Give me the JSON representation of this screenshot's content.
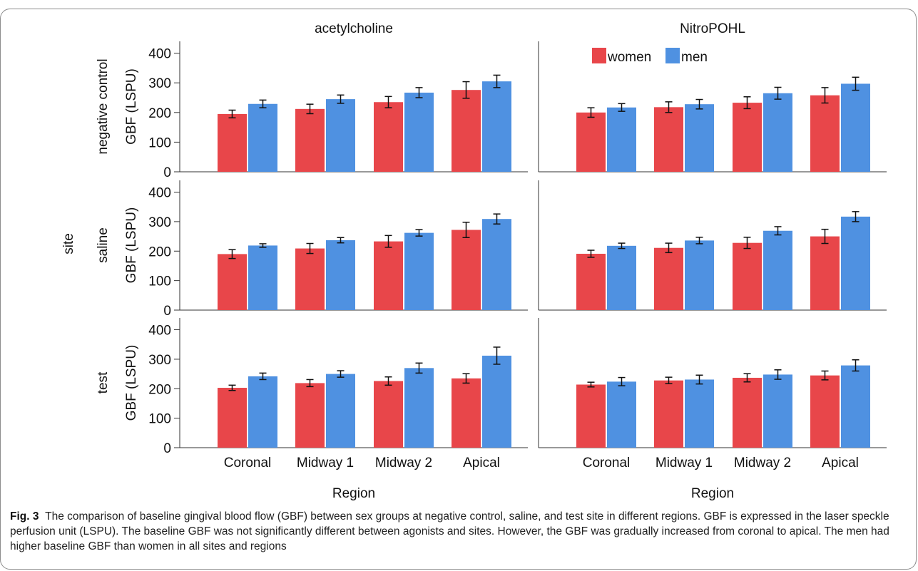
{
  "figure": {
    "caption_label": "Fig. 3",
    "caption_text": "The comparison of baseline gingival blood flow (GBF) between sex groups at negative control, saline, and test site in different regions. GBF is expressed in the laser speckle perfusion unit (LSPU). The baseline GBF was not significantly different between agonists and sites. However, the GBF was gradually increased from coronal to apical. The men had higher baseline GBF than women in all sites and regions"
  },
  "chart_data": {
    "type": "bar",
    "facet_row_title": "site",
    "xlabel": "Region",
    "ylabel": "GBF (LSPU)",
    "ylim": [
      0,
      440
    ],
    "yticks": [
      0,
      100,
      200,
      300,
      400
    ],
    "categories": [
      "Coronal",
      "Midway 1",
      "Midway 2",
      "Apical"
    ],
    "columns": [
      "acetylcholine",
      "NitroPOHL"
    ],
    "rows": [
      "negative control",
      "saline",
      "test"
    ],
    "legend": {
      "position": "top-right",
      "entries": [
        {
          "name": "women",
          "color": "#e8464a"
        },
        {
          "name": "men",
          "color": "#4f91e1"
        }
      ]
    },
    "error_bars": "shown",
    "grid": false,
    "panels": [
      {
        "row": "negative control",
        "column": "acetylcholine",
        "series": [
          {
            "name": "women",
            "values": [
              195,
              212,
              235,
              276
            ],
            "errors": [
              13,
              16,
              19,
              28
            ]
          },
          {
            "name": "men",
            "values": [
              229,
              245,
              267,
              305
            ],
            "errors": [
              13,
              14,
              17,
              21
            ]
          }
        ]
      },
      {
        "row": "negative control",
        "column": "NitroPOHL",
        "series": [
          {
            "name": "women",
            "values": [
              200,
              218,
              233,
              258
            ],
            "errors": [
              16,
              18,
              20,
              26
            ]
          },
          {
            "name": "men",
            "values": [
              217,
              228,
              265,
              297
            ],
            "errors": [
              13,
              16,
              20,
              22
            ]
          }
        ]
      },
      {
        "row": "saline",
        "column": "acetylcholine",
        "series": [
          {
            "name": "women",
            "values": [
              190,
              209,
              233,
              272
            ],
            "errors": [
              15,
              17,
              20,
              26
            ]
          },
          {
            "name": "men",
            "values": [
              219,
              237,
              262,
              309
            ],
            "errors": [
              6,
              9,
              11,
              17
            ]
          }
        ]
      },
      {
        "row": "saline",
        "column": "NitroPOHL",
        "series": [
          {
            "name": "women",
            "values": [
              191,
              211,
              228,
              250
            ],
            "errors": [
              12,
              16,
              19,
              24
            ]
          },
          {
            "name": "men",
            "values": [
              218,
              236,
              269,
              317
            ],
            "errors": [
              9,
              11,
              14,
              17
            ]
          }
        ]
      },
      {
        "row": "test",
        "column": "acetylcholine",
        "series": [
          {
            "name": "women",
            "values": [
              203,
              219,
              226,
              235
            ],
            "errors": [
              9,
              12,
              14,
              16
            ]
          },
          {
            "name": "men",
            "values": [
              242,
              250,
              270,
              312
            ],
            "errors": [
              11,
              11,
              17,
              29
            ]
          }
        ]
      },
      {
        "row": "test",
        "column": "NitroPOHL",
        "series": [
          {
            "name": "women",
            "values": [
              214,
              228,
              237,
              245
            ],
            "errors": [
              8,
              11,
              14,
              15
            ]
          },
          {
            "name": "men",
            "values": [
              224,
              231,
              248,
              279
            ],
            "errors": [
              14,
              15,
              16,
              19
            ]
          }
        ]
      }
    ]
  }
}
